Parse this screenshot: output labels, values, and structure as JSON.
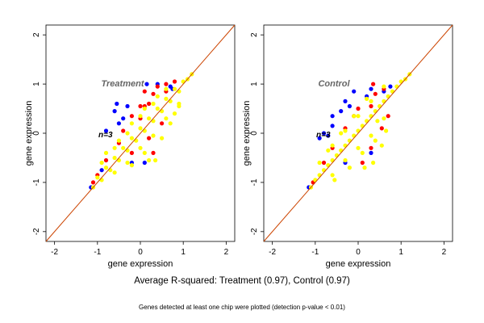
{
  "colors": {
    "background": "#ffffff",
    "frame": "#000000",
    "diagonal": "#cc4400",
    "blue_points": "#0000ff",
    "red_points": "#ff0000",
    "yellow_points": "#ffff00",
    "title_grey": "#666666"
  },
  "caption": {
    "main": "Average R-squared: Treatment (0.97), Control (0.97)",
    "sub": "Genes detected at least one chip were plotted (detection p-value < 0.01)"
  },
  "chart_data": [
    {
      "type": "scatter",
      "title": "Treatment",
      "annotation": "n=3",
      "xlabel": "gene expression",
      "ylabel": "gene expression",
      "xlim": [
        -2.2,
        2.2
      ],
      "ylim": [
        -2.2,
        2.2
      ],
      "xticks": [
        -2,
        -1,
        0,
        1,
        2
      ],
      "yticks": [
        -2,
        -1,
        0,
        1,
        2
      ],
      "grid": false,
      "reference_line": "y = x",
      "series_colors": [
        "#ffff00",
        "#ff0000",
        "#0000ff"
      ],
      "points": {
        "yellow": [
          [
            -1.1,
            -1.1
          ],
          [
            -1.0,
            -0.9
          ],
          [
            -0.9,
            -0.95
          ],
          [
            -0.8,
            -0.7
          ],
          [
            -0.7,
            -0.75
          ],
          [
            -0.6,
            -0.5
          ],
          [
            -0.5,
            -0.55
          ],
          [
            -0.4,
            -0.3
          ],
          [
            -0.3,
            -0.35
          ],
          [
            -0.2,
            -0.1
          ],
          [
            -0.1,
            -0.15
          ],
          [
            0.0,
            0.1
          ],
          [
            0.1,
            0.05
          ],
          [
            0.2,
            0.3
          ],
          [
            0.3,
            0.25
          ],
          [
            0.4,
            0.5
          ],
          [
            0.5,
            0.45
          ],
          [
            0.6,
            0.7
          ],
          [
            0.7,
            0.65
          ],
          [
            0.8,
            0.9
          ],
          [
            0.9,
            0.85
          ],
          [
            1.0,
            1.05
          ],
          [
            1.1,
            1.1
          ],
          [
            1.2,
            1.2
          ],
          [
            -0.6,
            -0.8
          ],
          [
            -0.3,
            -0.6
          ],
          [
            0.0,
            -0.3
          ],
          [
            0.3,
            -0.05
          ],
          [
            0.6,
            0.3
          ],
          [
            0.9,
            0.6
          ],
          [
            -0.9,
            -0.6
          ],
          [
            -0.6,
            -0.3
          ],
          [
            -0.3,
            0.0
          ],
          [
            0.0,
            0.35
          ],
          [
            0.3,
            0.6
          ],
          [
            0.6,
            0.9
          ],
          [
            0.2,
            -0.55
          ],
          [
            0.5,
            -0.1
          ],
          [
            0.7,
            0.2
          ],
          [
            0.8,
            0.4
          ],
          [
            0.9,
            0.55
          ],
          [
            -0.2,
            -0.65
          ],
          [
            0.1,
            -0.4
          ],
          [
            -0.5,
            -0.15
          ],
          [
            -0.2,
            0.2
          ],
          [
            0.1,
            0.5
          ],
          [
            0.4,
            0.75
          ],
          [
            -0.8,
            -0.4
          ],
          [
            0.35,
            -0.55
          ]
        ],
        "red": [
          [
            -1.1,
            -1.0
          ],
          [
            -1.0,
            -0.85
          ],
          [
            -0.8,
            -0.55
          ],
          [
            -0.5,
            -0.2
          ],
          [
            -0.4,
            0.05
          ],
          [
            -0.2,
            0.35
          ],
          [
            0.0,
            0.3
          ],
          [
            0.1,
            0.55
          ],
          [
            0.3,
            0.8
          ],
          [
            0.4,
            0.95
          ],
          [
            0.6,
            1.0
          ],
          [
            0.8,
            1.05
          ],
          [
            -0.2,
            -0.4
          ],
          [
            0.2,
            -0.1
          ],
          [
            0.5,
            0.2
          ],
          [
            0.3,
            -0.4
          ],
          [
            0.1,
            0.85
          ],
          [
            0.2,
            0.6
          ],
          [
            0.0,
            0.55
          ],
          [
            0.6,
            0.85
          ]
        ],
        "blue": [
          [
            -1.15,
            -1.1
          ],
          [
            -0.9,
            -0.75
          ],
          [
            -0.6,
            0.45
          ],
          [
            -0.55,
            0.6
          ],
          [
            -0.3,
            0.55
          ],
          [
            -0.4,
            0.3
          ],
          [
            0.15,
            1.0
          ],
          [
            0.4,
            1.0
          ],
          [
            0.7,
            0.95
          ],
          [
            0.1,
            -0.6
          ],
          [
            -0.2,
            -0.6
          ],
          [
            -0.8,
            0.05
          ],
          [
            -0.5,
            0.2
          ],
          [
            0.75,
            0.9
          ]
        ]
      }
    },
    {
      "type": "scatter",
      "title": "Control",
      "annotation": "n=3",
      "xlabel": "gene expression",
      "ylabel": "gene expression",
      "xlim": [
        -2.2,
        2.2
      ],
      "ylim": [
        -2.2,
        2.2
      ],
      "xticks": [
        -2,
        -1,
        0,
        1,
        2
      ],
      "yticks": [
        -2,
        -1,
        0,
        1,
        2
      ],
      "grid": false,
      "reference_line": "y = x",
      "series_colors": [
        "#ffff00",
        "#ff0000",
        "#0000ff"
      ],
      "points": {
        "yellow": [
          [
            -1.1,
            -1.1
          ],
          [
            -1.0,
            -0.95
          ],
          [
            -0.9,
            -0.85
          ],
          [
            -0.8,
            -0.75
          ],
          [
            -0.7,
            -0.65
          ],
          [
            -0.6,
            -0.55
          ],
          [
            -0.5,
            -0.45
          ],
          [
            -0.4,
            -0.35
          ],
          [
            -0.3,
            -0.25
          ],
          [
            -0.2,
            -0.15
          ],
          [
            -0.1,
            -0.05
          ],
          [
            0.0,
            0.05
          ],
          [
            0.1,
            0.15
          ],
          [
            0.2,
            0.25
          ],
          [
            0.3,
            0.35
          ],
          [
            0.4,
            0.45
          ],
          [
            0.5,
            0.55
          ],
          [
            0.6,
            0.65
          ],
          [
            0.7,
            0.75
          ],
          [
            0.8,
            0.85
          ],
          [
            0.9,
            0.95
          ],
          [
            1.0,
            1.05
          ],
          [
            1.1,
            1.1
          ],
          [
            1.2,
            1.2
          ],
          [
            -0.6,
            -0.85
          ],
          [
            -0.3,
            -0.55
          ],
          [
            0.0,
            -0.3
          ],
          [
            0.3,
            -0.05
          ],
          [
            0.6,
            0.3
          ],
          [
            -0.9,
            -0.6
          ],
          [
            -0.6,
            -0.25
          ],
          [
            -0.3,
            0.05
          ],
          [
            0.0,
            0.35
          ],
          [
            0.3,
            0.65
          ],
          [
            0.6,
            0.95
          ],
          [
            0.35,
            -0.6
          ],
          [
            0.55,
            -0.25
          ],
          [
            -0.55,
            -0.95
          ],
          [
            -0.2,
            -0.7
          ],
          [
            0.1,
            -0.4
          ],
          [
            0.4,
            -0.15
          ],
          [
            -0.7,
            -0.35
          ],
          [
            -0.4,
            0.0
          ],
          [
            -0.1,
            0.35
          ],
          [
            0.2,
            0.7
          ],
          [
            0.45,
            0.25
          ],
          [
            0.15,
            -0.7
          ],
          [
            0.65,
            0.05
          ]
        ],
        "red": [
          [
            -1.05,
            -1.0
          ],
          [
            -0.8,
            -0.6
          ],
          [
            -0.6,
            -0.3
          ],
          [
            -0.3,
            0.1
          ],
          [
            -0.1,
            0.35
          ],
          [
            0.0,
            0.5
          ],
          [
            0.3,
            0.55
          ],
          [
            0.4,
            0.8
          ],
          [
            0.6,
            0.9
          ],
          [
            0.3,
            -0.3
          ],
          [
            0.1,
            -0.6
          ],
          [
            0.55,
            0.1
          ],
          [
            0.7,
            0.35
          ],
          [
            0.35,
            1.0
          ]
        ],
        "blue": [
          [
            -1.15,
            -1.1
          ],
          [
            -0.8,
            0.0
          ],
          [
            -0.7,
            -0.05
          ],
          [
            -0.6,
            0.15
          ],
          [
            -0.9,
            -0.1
          ],
          [
            -0.6,
            0.35
          ],
          [
            -0.3,
            0.65
          ],
          [
            -0.2,
            0.55
          ],
          [
            0.2,
            0.75
          ],
          [
            0.3,
            0.9
          ],
          [
            0.6,
            0.85
          ],
          [
            0.75,
            0.95
          ],
          [
            -0.3,
            -0.6
          ],
          [
            0.3,
            -0.4
          ],
          [
            -0.1,
            0.85
          ],
          [
            -0.4,
            0.45
          ]
        ]
      }
    }
  ]
}
